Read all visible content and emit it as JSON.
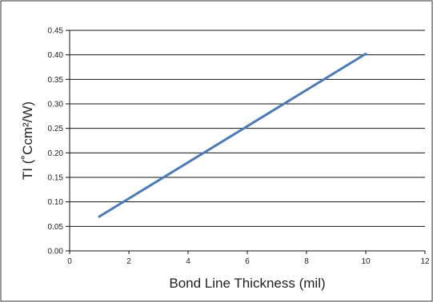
{
  "chart_data": {
    "type": "line",
    "title": "",
    "xlabel": "Bond Line Thickness (mil)",
    "ylabel": "TI (˚Ccm²/W)",
    "xlim": [
      0,
      12
    ],
    "ylim": [
      0,
      0.45
    ],
    "xticks": [
      0,
      2,
      4,
      6,
      8,
      10,
      12
    ],
    "yticks": [
      "0.00",
      "0.05",
      "0.10",
      "0.15",
      "0.20",
      "0.25",
      "0.30",
      "0.35",
      "0.40",
      "0.45"
    ],
    "grid": "horizontal",
    "legend": "none",
    "series": [
      {
        "x": [
          1,
          10
        ],
        "y": [
          0.07,
          0.402
        ],
        "color": "#4a7ab8"
      }
    ]
  }
}
